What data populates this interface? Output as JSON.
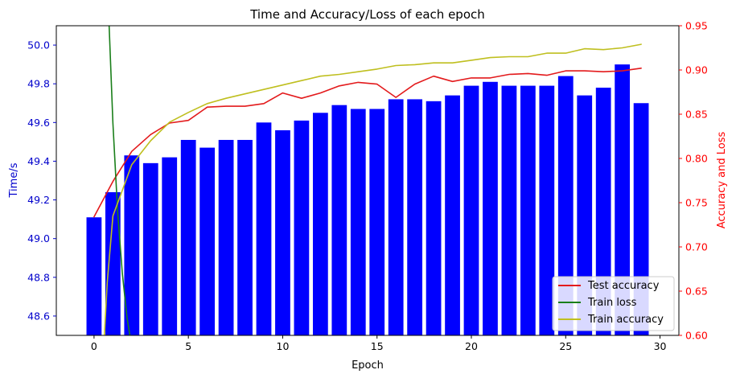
{
  "chart_data": {
    "type": "bar+line",
    "title": "Time and Accuracy/Loss of each epoch",
    "xlabel": "Epoch",
    "ylabel_left": "Time/s",
    "ylabel_right": "Accuracy and Loss",
    "xlim": [
      -2,
      31
    ],
    "ylim_left": [
      48.5,
      50.1
    ],
    "ylim_right": [
      0.6,
      0.95
    ],
    "x_ticks": [
      0,
      5,
      10,
      15,
      20,
      25,
      30
    ],
    "y_left_ticks": [
      "48.6",
      "48.8",
      "49.0",
      "49.2",
      "49.4",
      "49.6",
      "49.8",
      "50.0"
    ],
    "y_right_ticks": [
      "0.60",
      "0.65",
      "0.70",
      "0.75",
      "0.80",
      "0.85",
      "0.90",
      "0.95"
    ],
    "grid": false,
    "legend_position": "bottom-right",
    "colors": {
      "bars": "#0000ff",
      "left_axis": "#0000cc",
      "right_axis": "#ff0000",
      "test_accuracy": "#e31a1c",
      "train_loss": "#1a7f1a",
      "train_accuracy": "#bfbf1f"
    },
    "bars": {
      "name": "Time/s",
      "x": [
        0,
        1,
        2,
        3,
        4,
        5,
        6,
        7,
        8,
        9,
        10,
        11,
        12,
        13,
        14,
        15,
        16,
        17,
        18,
        19,
        20,
        21,
        22,
        23,
        24,
        25,
        26,
        27,
        28,
        29
      ],
      "values": [
        49.11,
        49.24,
        49.43,
        49.39,
        49.42,
        49.51,
        49.47,
        49.51,
        49.51,
        49.6,
        49.56,
        49.61,
        49.65,
        49.69,
        49.67,
        49.67,
        49.72,
        49.72,
        49.71,
        49.74,
        49.79,
        49.81,
        49.79,
        49.79,
        49.79,
        49.84,
        49.74,
        49.78,
        49.9,
        49.7
      ]
    },
    "series": [
      {
        "name": "Test accuracy",
        "x": [
          0,
          1,
          2,
          3,
          4,
          5,
          6,
          7,
          8,
          9,
          10,
          11,
          12,
          13,
          14,
          15,
          16,
          17,
          18,
          19,
          20,
          21,
          22,
          23,
          24,
          25,
          26,
          27,
          28,
          29
        ],
        "values": [
          0.734,
          0.774,
          0.808,
          0.827,
          0.84,
          0.843,
          0.858,
          0.859,
          0.859,
          0.862,
          0.874,
          0.868,
          0.874,
          0.882,
          0.886,
          0.884,
          0.869,
          0.884,
          0.893,
          0.887,
          0.891,
          0.891,
          0.895,
          0.896,
          0.894,
          0.899,
          0.899,
          0.898,
          0.899,
          0.902
        ]
      },
      {
        "name": "Train loss",
        "x": [
          0.8,
          1.0,
          1.25,
          1.5,
          1.75,
          1.9
        ],
        "values": [
          0.95,
          0.84,
          0.74,
          0.67,
          0.62,
          0.6
        ]
      },
      {
        "name": "Train accuracy",
        "x": [
          0.55,
          0.7,
          1,
          2,
          3,
          4,
          5,
          6,
          7,
          8,
          9,
          10,
          11,
          12,
          13,
          14,
          15,
          16,
          17,
          18,
          19,
          20,
          21,
          22,
          23,
          24,
          25,
          26,
          27,
          28,
          29
        ],
        "values": [
          0.6,
          0.66,
          0.735,
          0.793,
          0.82,
          0.841,
          0.852,
          0.862,
          0.868,
          0.873,
          0.878,
          0.883,
          0.888,
          0.893,
          0.895,
          0.898,
          0.901,
          0.905,
          0.906,
          0.908,
          0.908,
          0.911,
          0.914,
          0.915,
          0.915,
          0.919,
          0.919,
          0.924,
          0.923,
          0.925,
          0.929
        ]
      }
    ]
  }
}
